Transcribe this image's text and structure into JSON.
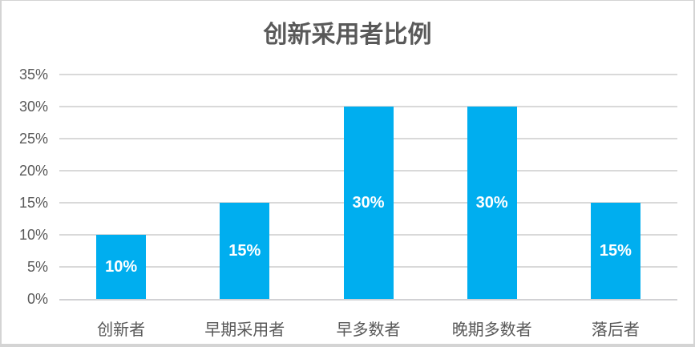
{
  "title": "创新采用者比例",
  "colors": {
    "bar": "#00AEEF",
    "bar_label": "#FFFFFF",
    "grid": "#D9D9D9",
    "axis_line": "#D1D1D4",
    "text": "#595959",
    "card_border": "#D4D4D4",
    "background": "#FFFFFF"
  },
  "chart_data": {
    "type": "bar",
    "title": "创新采用者比例",
    "categories": [
      "创新者",
      "早期采用者",
      "早多数者",
      "晚期多数者",
      "落后者"
    ],
    "values": [
      10,
      15,
      30,
      30,
      15
    ],
    "data_labels": [
      "10%",
      "15%",
      "30%",
      "30%",
      "15%"
    ],
    "y_ticks": [
      "0%",
      "5%",
      "10%",
      "15%",
      "20%",
      "25%",
      "30%",
      "35%"
    ],
    "ylim": [
      0,
      35
    ],
    "y_step": 5,
    "xlabel": "",
    "ylabel": "",
    "grid": true,
    "legend": false,
    "data_label_position": "center"
  }
}
